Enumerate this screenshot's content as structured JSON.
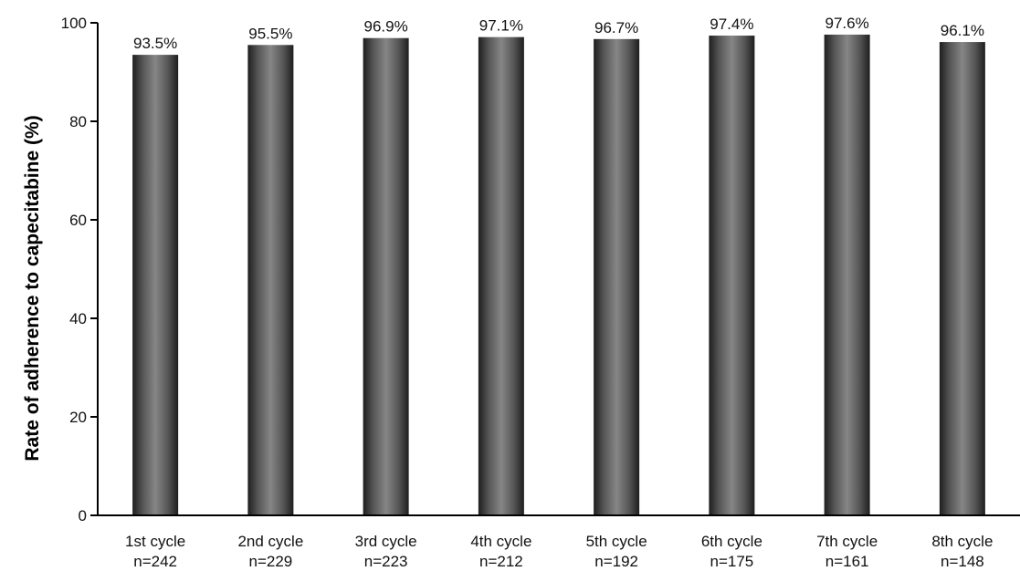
{
  "chart_data": {
    "type": "bar",
    "categories": [
      "1st cycle",
      "2nd cycle",
      "3rd cycle",
      "4th cycle",
      "5th cycle",
      "6th cycle",
      "7th cycle",
      "8th cycle"
    ],
    "category_sublabels": [
      "n=242",
      "n=229",
      "n=223",
      "n=212",
      "n=192",
      "n=175",
      "n=161",
      "n=148"
    ],
    "values": [
      93.5,
      95.5,
      96.9,
      97.1,
      96.7,
      97.4,
      97.6,
      96.1
    ],
    "data_labels": [
      "93.5%",
      "95.5%",
      "96.9%",
      "97.1%",
      "96.7%",
      "97.4%",
      "97.6%",
      "96.1%"
    ],
    "title": "",
    "xlabel": "",
    "ylabel": "Rate of adherence to capecitabine (%)",
    "ylim": [
      0,
      100
    ],
    "yticks": [
      0,
      20,
      40,
      60,
      80,
      100
    ],
    "ytick_labels": [
      "0",
      "20",
      "40",
      "60",
      "80",
      "100"
    ],
    "grid": false,
    "bar_color": "#6b6b6b"
  }
}
